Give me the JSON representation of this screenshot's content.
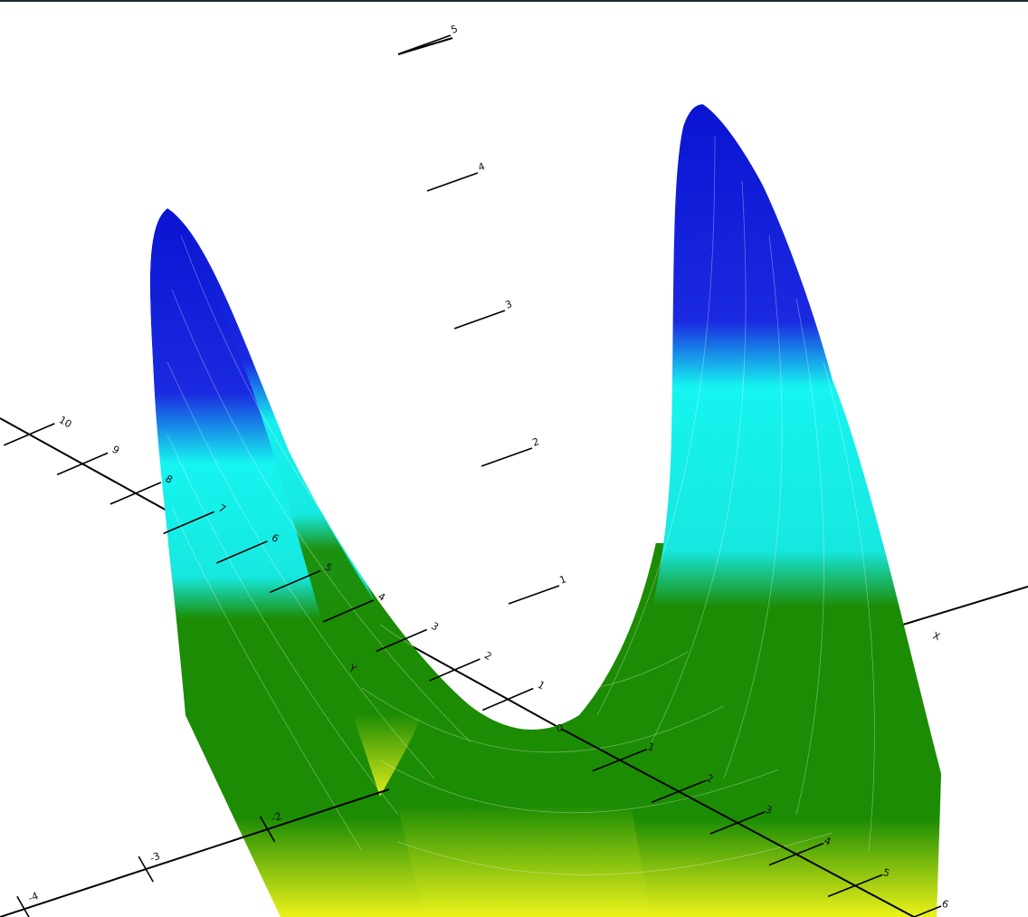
{
  "colors": {
    "background": "#ffffff",
    "top_border": "#1e2a2e",
    "axis": "#000000",
    "surface_high": "#0a14d2",
    "surface_upper": "#16f4f0",
    "surface_mid": "#1c8c04",
    "surface_low": "#ecf21a",
    "mesh": "#ffffff"
  },
  "axes": {
    "x": {
      "name": "X",
      "tick_labels": [
        "1",
        "2",
        "3",
        "4",
        "5",
        "6"
      ]
    },
    "y": {
      "name": "Y",
      "tick_labels": [
        "1",
        "2",
        "3",
        "4",
        "5",
        "6",
        "7",
        "8",
        "9",
        "10"
      ]
    },
    "x_negative_tick_labels": [
      "-2",
      "-3",
      "-4"
    ],
    "z": {
      "tick_labels": [
        "1",
        "2",
        "3",
        "4",
        "5"
      ]
    },
    "origin_label": "0"
  },
  "surface": {
    "shape": "saddle-ridge",
    "colormap": [
      "blue",
      "cyan",
      "green",
      "yellow"
    ],
    "mesh_visible": true
  }
}
